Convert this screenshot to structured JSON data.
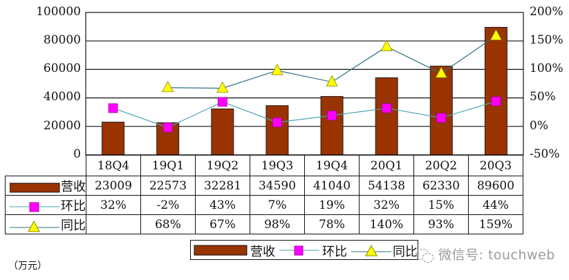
{
  "chart_data": {
    "type": "bar",
    "title": "",
    "categories": [
      "18Q4",
      "19Q1",
      "19Q2",
      "19Q3",
      "19Q4",
      "20Q1",
      "20Q2",
      "20Q3"
    ],
    "series": [
      {
        "name": "营收",
        "type": "bar",
        "axis": "left",
        "color": "#993300",
        "values": [
          23009,
          22573,
          32281,
          34590,
          41040,
          54138,
          62330,
          89600
        ]
      },
      {
        "name": "环比",
        "type": "line",
        "axis": "right",
        "marker": "square",
        "marker_color": "#ff00ff",
        "line_color": "#4aa3b0",
        "values": [
          32,
          -2,
          43,
          7,
          19,
          32,
          15,
          44
        ]
      },
      {
        "name": "同比",
        "type": "line",
        "axis": "right",
        "marker": "triangle",
        "marker_color": "#ffff00",
        "line_color": "#2f6f80",
        "values": [
          null,
          68,
          67,
          98,
          78,
          140,
          93,
          159
        ]
      }
    ],
    "left_axis": {
      "ylim": [
        0,
        100000
      ],
      "ticks": [
        "100000",
        "80000",
        "60000",
        "40000",
        "20000",
        "0"
      ]
    },
    "right_axis": {
      "ylim": [
        -50,
        200
      ],
      "ticks": [
        "200%",
        "150%",
        "100%",
        "50%",
        "0%",
        "-50%"
      ]
    },
    "grid": true,
    "legend_position": "bottom",
    "unit_note": "（万元）"
  },
  "table": {
    "header": [
      "18Q4",
      "19Q1",
      "19Q2",
      "19Q3",
      "19Q4",
      "20Q1",
      "20Q2",
      "20Q3"
    ],
    "rows": [
      {
        "label": "营收",
        "cells": [
          "23009",
          "22573",
          "32281",
          "34590",
          "41040",
          "54138",
          "62330",
          "89600"
        ]
      },
      {
        "label": "环比",
        "cells": [
          "32%",
          "-2%",
          "43%",
          "7%",
          "19%",
          "32%",
          "15%",
          "44%"
        ]
      },
      {
        "label": "同比",
        "cells": [
          "",
          "68%",
          "67%",
          "98%",
          "78%",
          "140%",
          "93%",
          "159%"
        ]
      }
    ]
  },
  "legend": {
    "items": [
      "营收",
      "环比",
      "同比"
    ]
  },
  "unit": "（万元）",
  "watermark": "微信号: touchweb"
}
